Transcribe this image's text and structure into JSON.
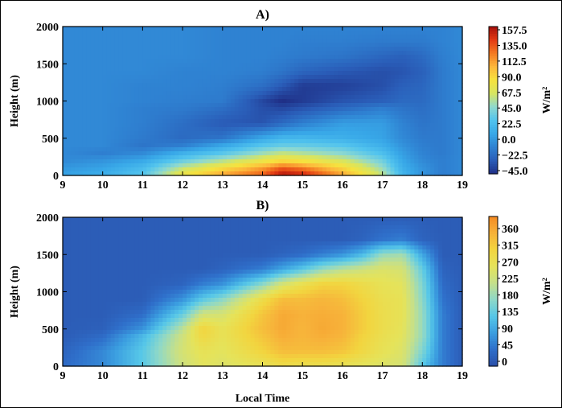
{
  "figure": {
    "panel_a_title": "A)",
    "panel_b_title": "B)",
    "xlabel": "Local Time"
  },
  "chart_data": [
    {
      "type": "heatmap",
      "title": "A)",
      "xlabel": "",
      "ylabel": "Height (m)",
      "xlim": [
        9,
        19
      ],
      "ylim": [
        0,
        2000
      ],
      "xticks": [
        9,
        10,
        11,
        12,
        13,
        14,
        15,
        16,
        17,
        18,
        19
      ],
      "yticks": [
        0,
        500,
        1000,
        1500,
        2000
      ],
      "colorbar": {
        "label": "W/m²",
        "range": [
          -45.0,
          157.5
        ],
        "ticks": [
          "157.5",
          "135.0",
          "112.5",
          "90.0",
          "67.5",
          "45.0",
          "22.5",
          "0.0",
          "−22.5",
          "−45.0"
        ],
        "colors": [
          "#1f2f86",
          "#2a5db8",
          "#2f82d2",
          "#38a8e8",
          "#52c4ee",
          "#8fd9cf",
          "#d8e560",
          "#f6e23e",
          "#fdb83c",
          "#f47a22",
          "#e33a14",
          "#a50f0b"
        ]
      },
      "field": {
        "description_free_values_only": true,
        "x": [
          9,
          10,
          11,
          12,
          13,
          14,
          14.5,
          15,
          16,
          17,
          17.5,
          18,
          18.5,
          19
        ],
        "y": [
          0,
          100,
          200,
          300,
          400,
          500,
          700,
          900,
          1000,
          1200,
          1400,
          1600,
          1800,
          2000
        ],
        "z": [
          [
            8,
            15,
            30,
            80,
            110,
            130,
            157,
            150,
            110,
            60,
            20,
            0,
            -10,
            -5
          ],
          [
            2,
            8,
            22,
            60,
            85,
            110,
            130,
            120,
            90,
            50,
            15,
            0,
            -10,
            -5
          ],
          [
            -5,
            0,
            10,
            35,
            55,
            75,
            85,
            80,
            65,
            38,
            10,
            -5,
            -10,
            -5
          ],
          [
            -5,
            -10,
            -5,
            15,
            30,
            50,
            60,
            55,
            45,
            25,
            5,
            -8,
            -12,
            -5
          ],
          [
            -5,
            -5,
            -15,
            -10,
            10,
            30,
            35,
            35,
            30,
            15,
            0,
            -10,
            -12,
            -5
          ],
          [
            -5,
            -5,
            -12,
            -20,
            -15,
            10,
            20,
            20,
            15,
            8,
            -5,
            -12,
            -12,
            -5
          ],
          [
            -5,
            -5,
            -10,
            -18,
            -28,
            -30,
            -20,
            -10,
            5,
            5,
            -8,
            -15,
            -12,
            -5
          ],
          [
            -5,
            -5,
            -10,
            -12,
            -18,
            -32,
            -35,
            -30,
            -20,
            -10,
            -15,
            -18,
            -12,
            -5
          ],
          [
            -5,
            -5,
            -8,
            -10,
            -12,
            -35,
            -45,
            -40,
            -30,
            -25,
            -20,
            -20,
            -12,
            -5
          ],
          [
            -5,
            -5,
            -8,
            -8,
            -10,
            -18,
            -28,
            -40,
            -38,
            -32,
            -25,
            -22,
            -12,
            -5
          ],
          [
            -5,
            -5,
            -5,
            -8,
            -8,
            -10,
            -15,
            -22,
            -28,
            -32,
            -30,
            -25,
            -12,
            -5
          ],
          [
            -5,
            -5,
            -5,
            -5,
            -8,
            -8,
            -10,
            -12,
            -15,
            -22,
            -25,
            -20,
            -10,
            -5
          ],
          [
            -5,
            -5,
            -5,
            -5,
            -8,
            -8,
            -8,
            -10,
            -10,
            -12,
            -12,
            -12,
            -8,
            -5
          ],
          [
            -5,
            -5,
            -5,
            -5,
            -8,
            -8,
            -8,
            -8,
            -8,
            -8,
            -8,
            -8,
            -8,
            -5
          ]
        ]
      }
    },
    {
      "type": "heatmap",
      "title": "B)",
      "xlabel": "Local Time",
      "ylabel": "Height (m)",
      "xlim": [
        9,
        19
      ],
      "ylim": [
        0,
        2000
      ],
      "xticks": [
        9,
        10,
        11,
        12,
        13,
        14,
        15,
        16,
        17,
        18,
        19
      ],
      "yticks": [
        0,
        500,
        1000,
        1500,
        2000
      ],
      "colorbar": {
        "label": "W/m²",
        "range": [
          -20,
          390
        ],
        "ticks": [
          "360",
          "315",
          "270",
          "225",
          "180",
          "135",
          "90",
          "45",
          "0"
        ],
        "colors": [
          "#2a4fa8",
          "#2f6fca",
          "#3b9ee0",
          "#56c7e8",
          "#8ed8c8",
          "#c5e08a",
          "#e5e35a",
          "#f2d53f",
          "#f7b23a",
          "#f48a22"
        ]
      },
      "field": {
        "x": [
          9,
          10,
          11,
          12,
          12.5,
          13,
          14,
          14.5,
          15,
          15.5,
          16,
          16.5,
          17,
          17.5,
          18,
          18.5,
          19
        ],
        "y": [
          0,
          200,
          400,
          500,
          700,
          900,
          1100,
          1300,
          1500,
          1700,
          2000
        ],
        "z": [
          [
            20,
            50,
            120,
            220,
            250,
            240,
            260,
            280,
            270,
            270,
            260,
            250,
            240,
            230,
            120,
            40,
            0
          ],
          [
            10,
            50,
            120,
            230,
            260,
            250,
            300,
            330,
            330,
            330,
            320,
            290,
            260,
            240,
            150,
            40,
            0
          ],
          [
            0,
            20,
            100,
            220,
            290,
            260,
            320,
            350,
            340,
            350,
            340,
            300,
            270,
            250,
            170,
            40,
            0
          ],
          [
            0,
            5,
            60,
            200,
            300,
            260,
            330,
            355,
            340,
            355,
            345,
            310,
            275,
            255,
            170,
            40,
            0
          ],
          [
            0,
            0,
            20,
            130,
            220,
            230,
            320,
            355,
            345,
            350,
            345,
            310,
            275,
            260,
            170,
            40,
            0
          ],
          [
            0,
            0,
            0,
            60,
            120,
            160,
            280,
            330,
            330,
            340,
            330,
            300,
            270,
            260,
            160,
            30,
            0
          ],
          [
            0,
            0,
            0,
            10,
            40,
            60,
            160,
            230,
            270,
            300,
            300,
            280,
            260,
            250,
            150,
            20,
            0
          ],
          [
            0,
            0,
            0,
            0,
            0,
            10,
            40,
            80,
            120,
            170,
            200,
            220,
            240,
            230,
            130,
            10,
            0
          ],
          [
            0,
            0,
            0,
            0,
            0,
            0,
            0,
            10,
            20,
            40,
            60,
            100,
            170,
            180,
            80,
            0,
            0
          ],
          [
            0,
            0,
            0,
            0,
            0,
            0,
            0,
            0,
            0,
            0,
            0,
            10,
            30,
            40,
            10,
            0,
            0
          ],
          [
            0,
            0,
            0,
            0,
            0,
            0,
            0,
            0,
            0,
            0,
            0,
            0,
            0,
            0,
            0,
            0,
            0
          ]
        ]
      }
    }
  ]
}
